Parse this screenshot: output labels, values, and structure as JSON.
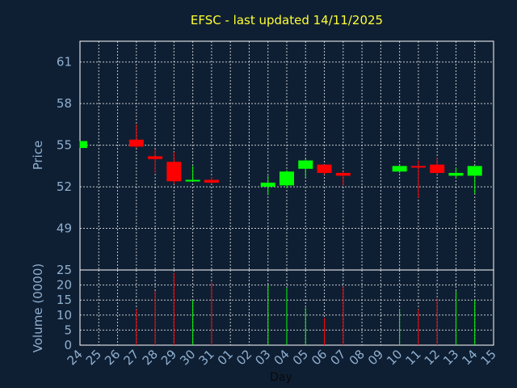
{
  "chart_data": {
    "type": "candlestick",
    "title": "EFSC - last updated 14/11/2025",
    "xlabel": "Day",
    "price_panel": {
      "ylabel": "Price",
      "ylim": [
        46.0,
        62.5
      ],
      "yticks": [
        49,
        52,
        55,
        58,
        61
      ]
    },
    "volume_panel": {
      "ylabel": "Volume (0000)",
      "ylim": [
        0,
        25
      ],
      "yticks": [
        0,
        5,
        10,
        15,
        20,
        25
      ]
    },
    "days": [
      "24",
      "25",
      "26",
      "27",
      "28",
      "29",
      "30",
      "31",
      "01",
      "02",
      "03",
      "04",
      "05",
      "06",
      "07",
      "08",
      "09",
      "10",
      "11",
      "12",
      "13",
      "14",
      "15"
    ],
    "candles": [
      {
        "day": "24",
        "open": 54.8,
        "close": 55.3,
        "high": 55.3,
        "low": 54.8,
        "color": "#00ff00",
        "volume": 0
      },
      {
        "day": "27",
        "open": 55.4,
        "close": 54.9,
        "high": 56.5,
        "low": 54.8,
        "color": "#ff0000",
        "volume": 12
      },
      {
        "day": "28",
        "open": 54.2,
        "close": 54.0,
        "high": 54.7,
        "low": 53.0,
        "color": "#ff0000",
        "volume": 18
      },
      {
        "day": "29",
        "open": 53.8,
        "close": 52.4,
        "high": 54.5,
        "low": 52.2,
        "color": "#ff0000",
        "volume": 24
      },
      {
        "day": "30",
        "open": 52.4,
        "close": 52.5,
        "high": 53.5,
        "low": 52.4,
        "color": "#00ff00",
        "volume": 15
      },
      {
        "day": "31",
        "open": 52.5,
        "close": 52.3,
        "high": 52.7,
        "low": 52.2,
        "color": "#ff0000",
        "volume": 21
      },
      {
        "day": "03",
        "open": 52.0,
        "close": 52.3,
        "high": 52.8,
        "low": 51.4,
        "color": "#00ff00",
        "volume": 20
      },
      {
        "day": "04",
        "open": 52.1,
        "close": 53.1,
        "high": 53.2,
        "low": 51.9,
        "color": "#00ff00",
        "volume": 19
      },
      {
        "day": "05",
        "open": 53.3,
        "close": 53.9,
        "high": 54.0,
        "low": 52.7,
        "color": "#00ff00",
        "volume": 12.5
      },
      {
        "day": "06",
        "open": 53.6,
        "close": 53.0,
        "high": 53.6,
        "low": 52.9,
        "color": "#ff0000",
        "volume": 9
      },
      {
        "day": "07",
        "open": 53.0,
        "close": 52.8,
        "high": 53.1,
        "low": 52.1,
        "color": "#ff0000",
        "volume": 19.5
      },
      {
        "day": "10",
        "open": 53.1,
        "close": 53.5,
        "high": 53.6,
        "low": 53.0,
        "color": "#00ff00",
        "volume": 12
      },
      {
        "day": "11",
        "open": 53.5,
        "close": 53.4,
        "high": 53.9,
        "low": 51.2,
        "color": "#ff0000",
        "volume": 12
      },
      {
        "day": "12",
        "open": 53.6,
        "close": 53.0,
        "high": 54.1,
        "low": 52.9,
        "color": "#ff0000",
        "volume": 15.5
      },
      {
        "day": "13",
        "open": 52.8,
        "close": 53.0,
        "high": 53.4,
        "low": 52.6,
        "color": "#00ff00",
        "volume": 18
      },
      {
        "day": "14",
        "open": 52.8,
        "close": 53.5,
        "high": 53.5,
        "low": 51.5,
        "color": "#00ff00",
        "volume": 15
      }
    ]
  }
}
